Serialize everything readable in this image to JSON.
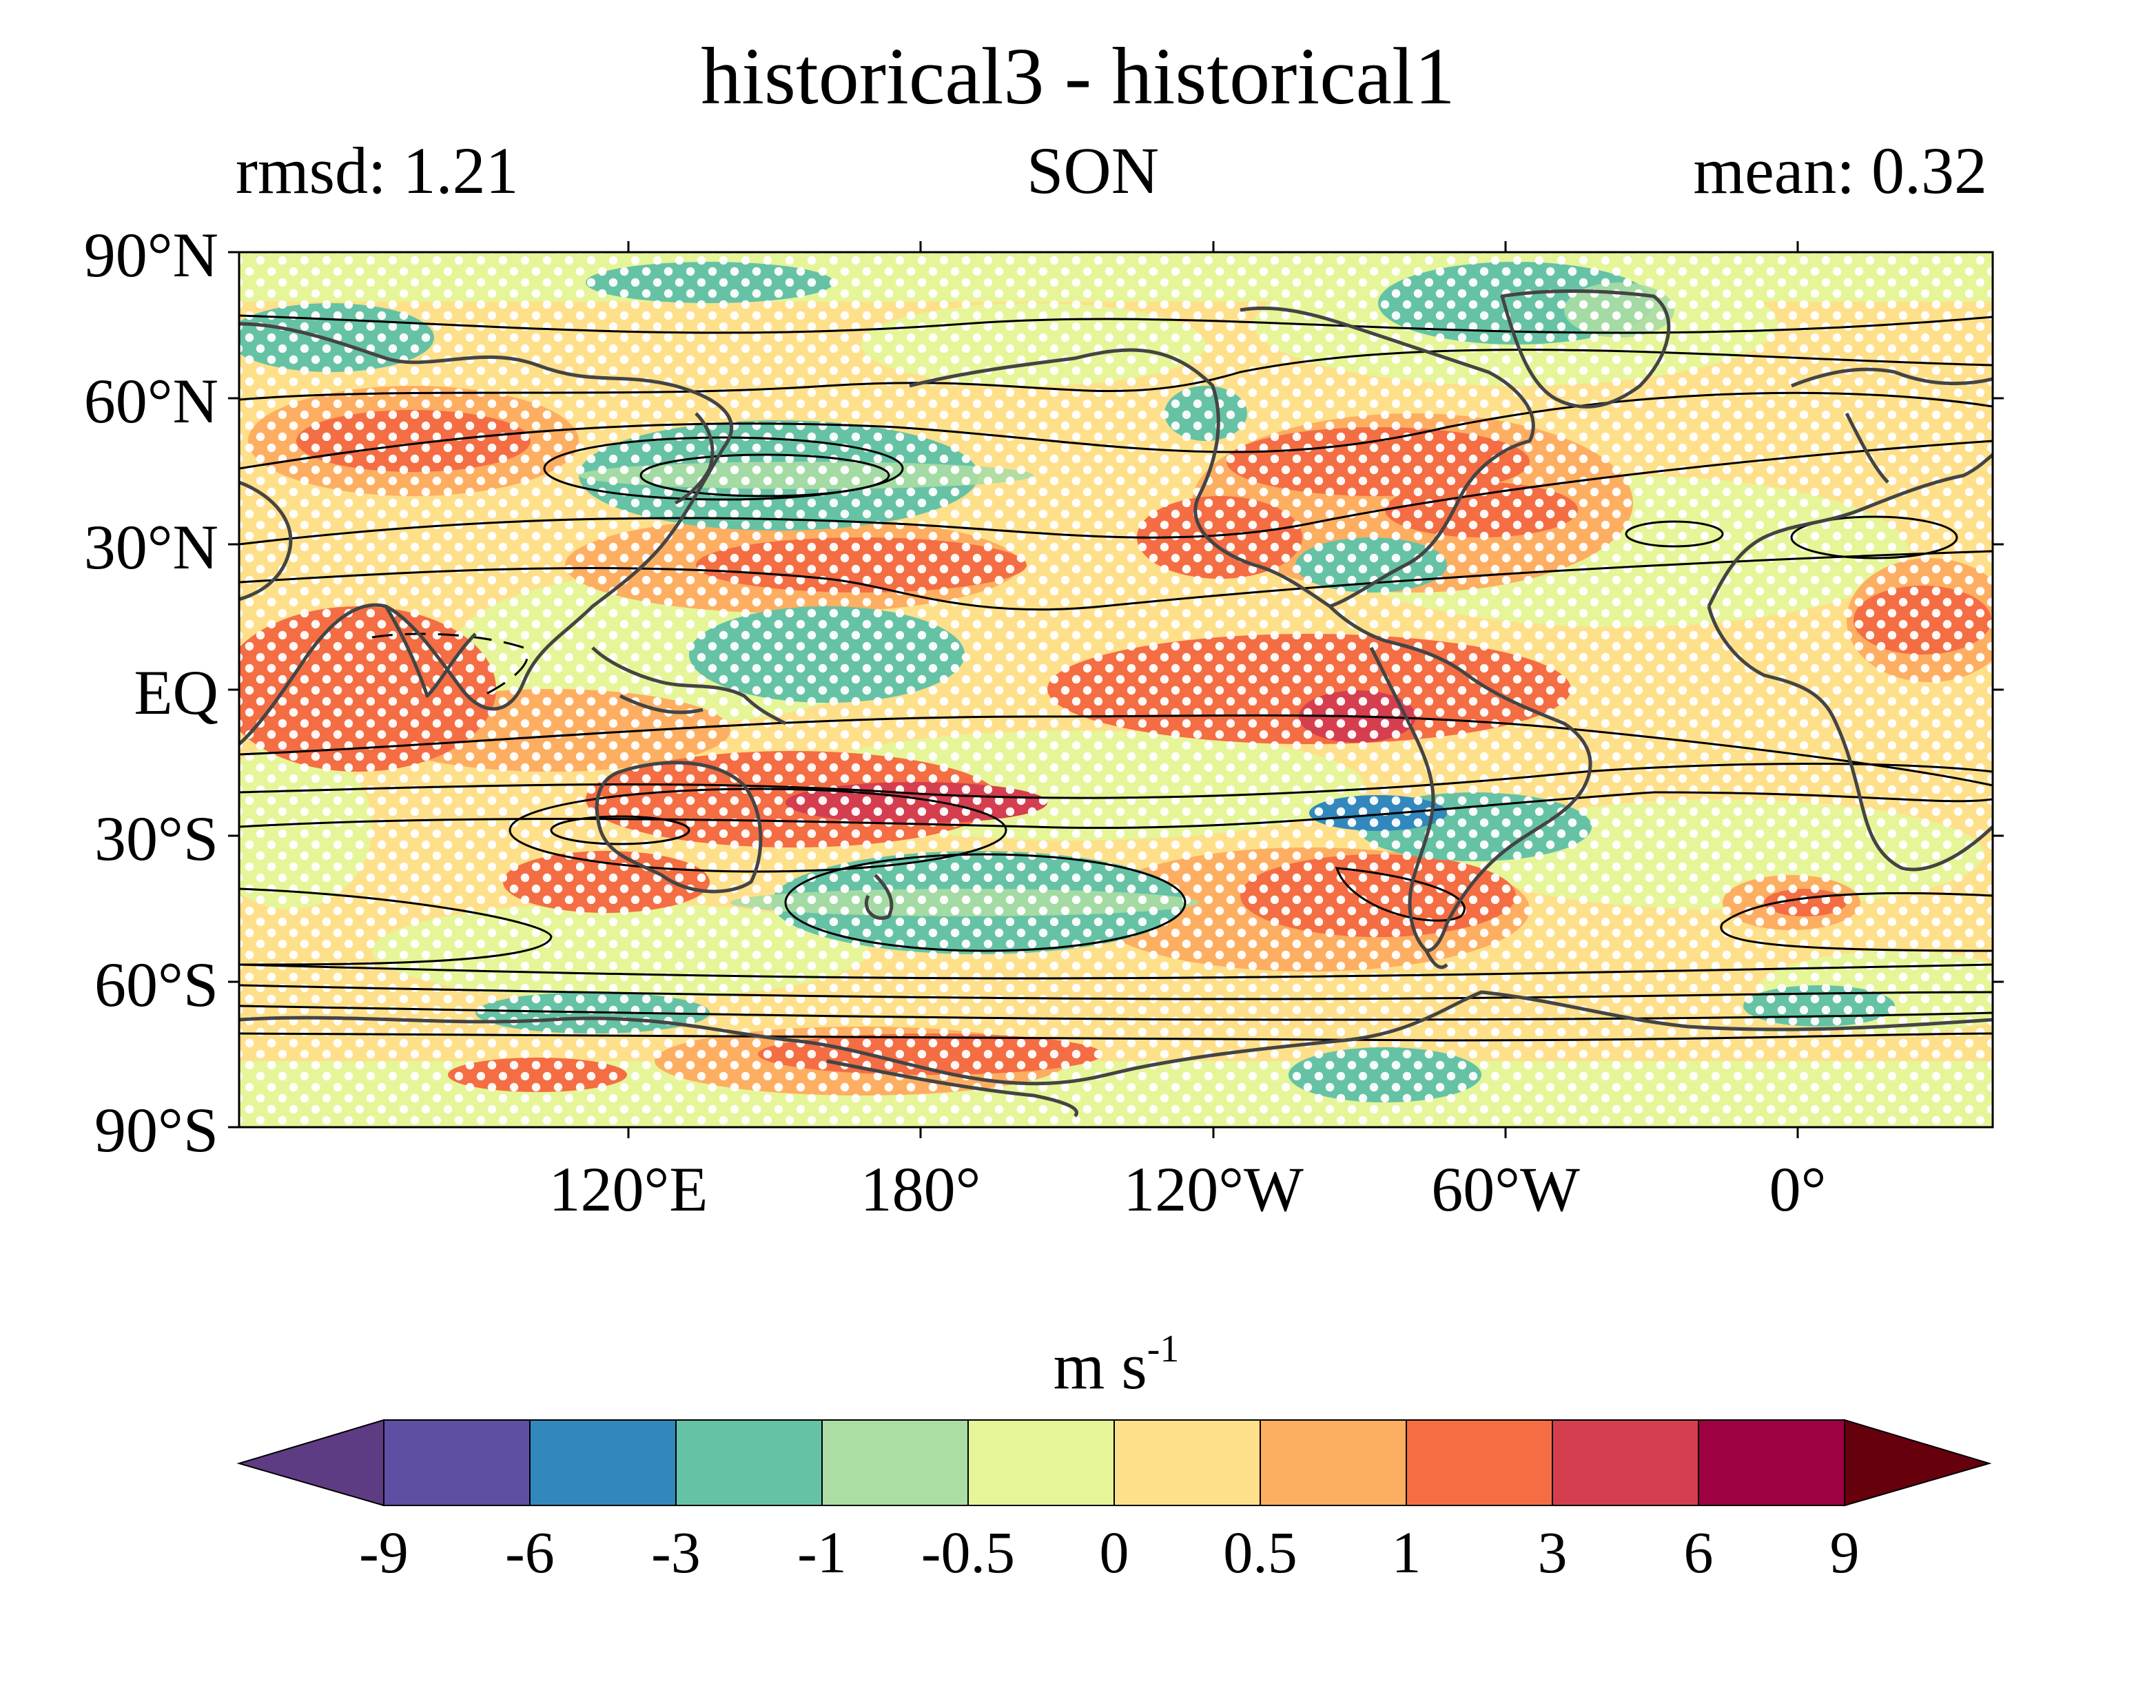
{
  "title": "historical3 - historical1",
  "left_subtitle": "rmsd: 1.21",
  "center_subtitle": "SON",
  "right_subtitle": "mean: 0.32",
  "map": {
    "projection": "PlateCarree",
    "lon_range": [
      30,
      390
    ],
    "lat_range": [
      -90,
      90
    ],
    "y_ticks": [
      "90°N",
      "60°N",
      "30°N",
      "EQ",
      "30°S",
      "60°S",
      "90°S"
    ],
    "x_ticks": [
      "120°E",
      "180°",
      "120°W",
      "60°W",
      "0°"
    ],
    "field_colors": {
      "-9_-6": "#5e4fa2",
      "-6_-3": "#3288bd",
      "-3_-1": "#66c2a5",
      "-1_-0.5": "#abdda4",
      "-0.5_0": "#e6f598",
      "0_0.5": "#fee08b",
      "0.5_1": "#fdae61",
      "1_3": "#f46d43",
      "3_6": "#d53e4f",
      "6_9": "#9e0142"
    },
    "stippling": "white dots mark statistically significant differences",
    "contours": "black lines show the climatology of historical1"
  },
  "colorbar": {
    "units_main": "m s",
    "units_exp": "-1",
    "labels": [
      "-9",
      "-6",
      "-3",
      "-1",
      "-0.5",
      "0",
      "0.5",
      "1",
      "3",
      "6",
      "9"
    ],
    "colors": [
      "#5e3c83",
      "#5e4fa2",
      "#3288bd",
      "#66c2a5",
      "#abdda4",
      "#e6f598",
      "#fee08b",
      "#fdae61",
      "#f46d43",
      "#d53e4f",
      "#9e0142",
      "#67000d"
    ],
    "extend": "both"
  }
}
